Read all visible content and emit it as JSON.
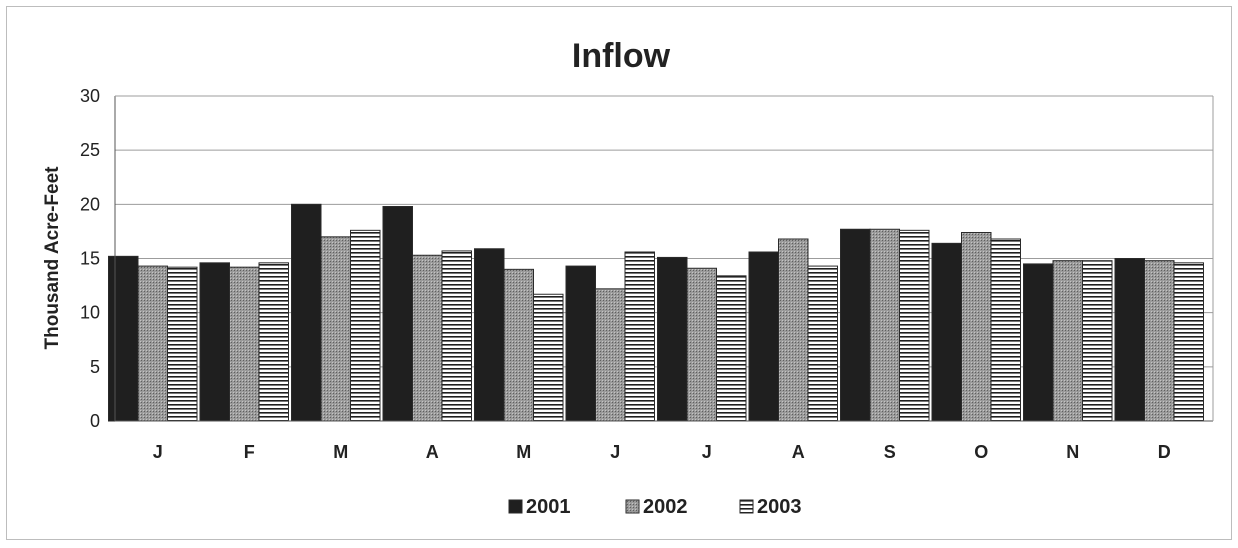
{
  "chart_data": {
    "type": "bar",
    "title": "Inflow",
    "ylabel": "Thousand Acre-Feet",
    "xlabel": "",
    "ylim": [
      0,
      30
    ],
    "yticks": [
      "0",
      "5",
      "10",
      "15",
      "20",
      "25",
      "30"
    ],
    "grid": true,
    "legend_position": "bottom",
    "categories": [
      "J",
      "F",
      "M",
      "A",
      "M",
      "J",
      "J",
      "A",
      "S",
      "O",
      "N",
      "D"
    ],
    "series": [
      {
        "name": "2001",
        "color": "#1f1f1f",
        "pattern": "solid",
        "values": [
          15.2,
          14.6,
          20.0,
          19.8,
          15.9,
          14.3,
          15.1,
          15.6,
          17.7,
          16.4,
          14.5,
          15.0
        ]
      },
      {
        "name": "2002",
        "color": "#8a8a8a",
        "pattern": "dotted-gray",
        "values": [
          14.3,
          14.2,
          17.0,
          15.3,
          14.0,
          12.2,
          14.1,
          16.8,
          17.7,
          17.4,
          14.8,
          14.8
        ]
      },
      {
        "name": "2003",
        "color": "#ffffff",
        "pattern": "horizontal-lines",
        "values": [
          14.2,
          14.6,
          17.6,
          15.7,
          11.7,
          15.6,
          13.4,
          14.3,
          17.6,
          16.8,
          14.8,
          14.6
        ]
      }
    ]
  }
}
